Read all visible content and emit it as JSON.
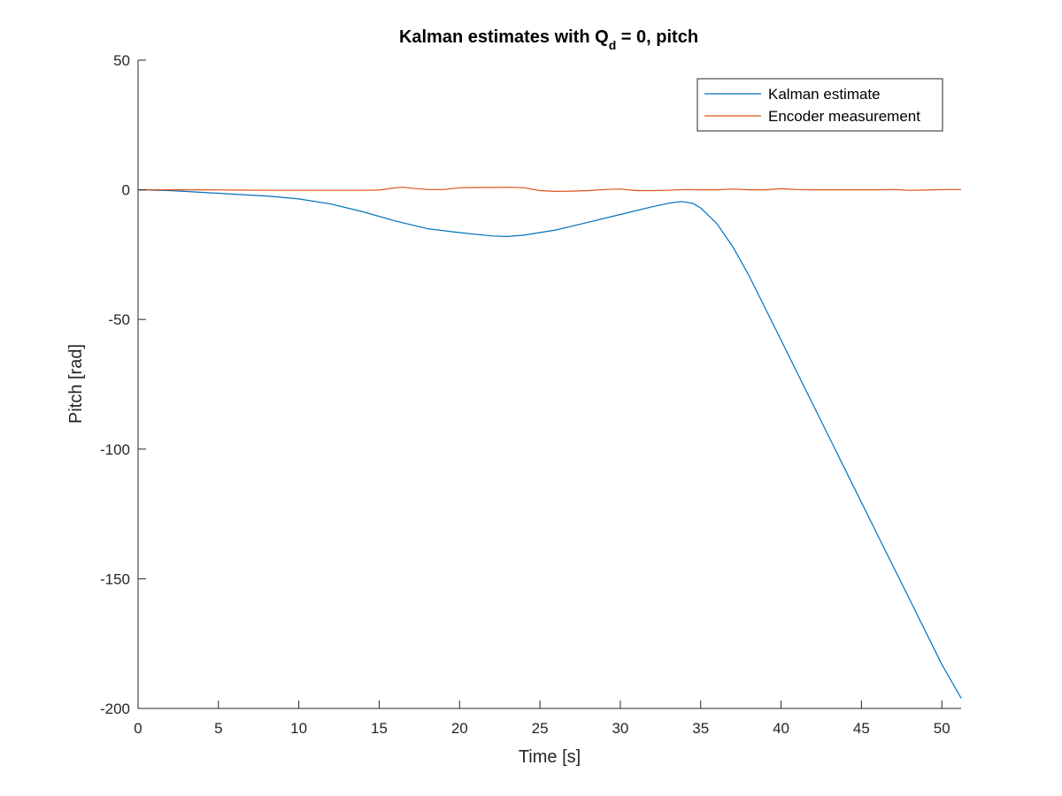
{
  "chart_data": {
    "type": "line",
    "title": {
      "main": "Kalman estimates with Q",
      "subscript": "d",
      "suffix": " = 0, pitch"
    },
    "xlabel": "Time [s]",
    "ylabel": "Pitch [rad]",
    "xlim": [
      0,
      51.2
    ],
    "ylim": [
      -200,
      50
    ],
    "xticks": [
      0,
      5,
      10,
      15,
      20,
      25,
      30,
      35,
      40,
      45,
      50
    ],
    "yticks": [
      -200,
      -150,
      -100,
      -50,
      0,
      50
    ],
    "grid": false,
    "legend": {
      "placement": "top-right",
      "entries": [
        "Kalman estimate",
        "Encoder measurement"
      ]
    },
    "colors": {
      "kalman": "#0072BD",
      "encoder": "#D95319",
      "axis": "#262626"
    },
    "series": [
      {
        "name": "Kalman estimate",
        "color": "#0072BD",
        "x": [
          0,
          2,
          4,
          6,
          8,
          10,
          12,
          14,
          16,
          18,
          20,
          22,
          23,
          24,
          26,
          28,
          30,
          32,
          33,
          33.8,
          34.5,
          35,
          36,
          37,
          38,
          40,
          42,
          44,
          46,
          48,
          50,
          51.2
        ],
        "y": [
          0,
          -0.3,
          -1,
          -1.7,
          -2.4,
          -3.5,
          -5.5,
          -8.5,
          -12,
          -15,
          -16.5,
          -17.8,
          -18,
          -17.5,
          -15.5,
          -12.5,
          -9.5,
          -6.5,
          -5.2,
          -4.5,
          -5.2,
          -7,
          -13,
          -22,
          -33,
          -58,
          -83,
          -108,
          -133,
          -158,
          -183,
          -196
        ]
      },
      {
        "name": "Encoder measurement",
        "color": "#D95319",
        "x": [
          0,
          2,
          4,
          6,
          8,
          10,
          12,
          14,
          15,
          16,
          16.5,
          17,
          18,
          19,
          20,
          21,
          22,
          23,
          24,
          25,
          26,
          27,
          28,
          29,
          30,
          31,
          32,
          33,
          34,
          35,
          36,
          37,
          38,
          39,
          40,
          41,
          42,
          43,
          44,
          45,
          46,
          47,
          48,
          49,
          50,
          51.2
        ],
        "y": [
          0,
          0,
          0,
          -0.1,
          -0.2,
          -0.2,
          -0.2,
          -0.2,
          -0.1,
          0.8,
          1.0,
          0.6,
          0.1,
          0.1,
          0.8,
          0.9,
          0.9,
          1.0,
          0.8,
          -0.3,
          -0.6,
          -0.5,
          -0.3,
          0.1,
          0.3,
          -0.3,
          -0.3,
          -0.2,
          0.1,
          0,
          0,
          0.3,
          0,
          0,
          0.4,
          0.1,
          0,
          0,
          0,
          0,
          0,
          0.1,
          -0.2,
          -0.1,
          0.1,
          0.1
        ]
      }
    ]
  }
}
